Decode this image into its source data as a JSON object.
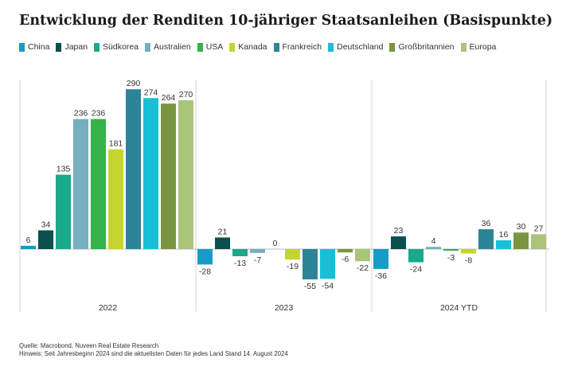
{
  "chart_data": {
    "type": "bar",
    "title": "Entwicklung der Renditen 10-jähriger Staatsanleihen (Basispunkte)",
    "xlabel": "",
    "ylabel": "",
    "ylim": [
      -60,
      300
    ],
    "grid": false,
    "legend_position": "top-left",
    "categories": [
      "2022",
      "2023",
      "2024 YTD"
    ],
    "series": [
      {
        "name": "China",
        "color": "#1a9bc5",
        "values": [
          6,
          -28,
          -36
        ]
      },
      {
        "name": "Japan",
        "color": "#0b4f4f",
        "values": [
          34,
          21,
          23
        ]
      },
      {
        "name": "Südkorea",
        "color": "#1aa98a",
        "values": [
          135,
          -13,
          -24
        ]
      },
      {
        "name": "Australien",
        "color": "#76afbf",
        "values": [
          236,
          -7,
          4
        ]
      },
      {
        "name": "USA",
        "color": "#35b24a",
        "values": [
          236,
          0,
          -3
        ]
      },
      {
        "name": "Kanada",
        "color": "#c3d630",
        "values": [
          181,
          -19,
          -8
        ]
      },
      {
        "name": "Frankreich",
        "color": "#2b8596",
        "values": [
          290,
          -55,
          36
        ]
      },
      {
        "name": "Deutschland",
        "color": "#17c0d6",
        "values": [
          274,
          -54,
          16
        ]
      },
      {
        "name": "Großbritannien",
        "color": "#79953f",
        "values": [
          264,
          -6,
          30
        ]
      },
      {
        "name": "Europa",
        "color": "#a9c57a",
        "values": [
          270,
          -22,
          27
        ]
      }
    ]
  },
  "footer": {
    "source": "Quelle: Macrobond, Nuveen Real Estate Research",
    "note": "Hinweis: Seit Jahresbeginn 2024 sind die aktuellsten Daten für jedes Land Stand 14. August 2024"
  }
}
